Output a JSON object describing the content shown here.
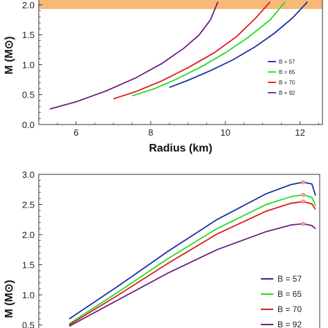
{
  "chart_data": [
    {
      "type": "line",
      "title": "",
      "xlabel": "Radius (km)",
      "ylabel": "M (M⊙)",
      "xlim": [
        5,
        12.6
      ],
      "ylim": [
        0,
        2.08
      ],
      "xticks": [
        "6",
        "8",
        "10",
        "12"
      ],
      "yticks": [
        "0.0",
        "0.5",
        "1.0",
        "1.5",
        "2.0"
      ],
      "band": {
        "y_from": 1.93,
        "y_to": 2.08,
        "color": "#f8b878"
      },
      "legend": {
        "position": "right"
      },
      "series": [
        {
          "name": "B = 57",
          "color": "#1a2ea0",
          "x": [
            8.5,
            9.0,
            9.6,
            10.2,
            10.8,
            11.3,
            11.8,
            12.2
          ],
          "y": [
            0.62,
            0.74,
            0.9,
            1.08,
            1.3,
            1.52,
            1.78,
            2.05
          ]
        },
        {
          "name": "B = 65",
          "color": "#22dd22",
          "x": [
            7.5,
            8.1,
            8.7,
            9.4,
            10.0,
            10.6,
            11.2,
            11.6
          ],
          "y": [
            0.48,
            0.6,
            0.76,
            0.98,
            1.2,
            1.45,
            1.75,
            2.05
          ]
        },
        {
          "name": "B = 70",
          "color": "#dd1a1a",
          "x": [
            7.0,
            7.6,
            8.3,
            9.0,
            9.7,
            10.3,
            10.8,
            11.2
          ],
          "y": [
            0.43,
            0.55,
            0.73,
            0.95,
            1.2,
            1.47,
            1.77,
            2.05
          ]
        },
        {
          "name": "B = 92",
          "color": "#6a1f82",
          "x": [
            5.3,
            6.0,
            6.8,
            7.6,
            8.3,
            8.9,
            9.3,
            9.6,
            9.8
          ],
          "y": [
            0.26,
            0.38,
            0.56,
            0.78,
            1.02,
            1.28,
            1.5,
            1.75,
            2.05
          ]
        }
      ]
    },
    {
      "type": "line",
      "title": "",
      "xlabel": "",
      "ylabel": "M (M⊙)",
      "ylim": [
        0.45,
        3.0
      ],
      "yticks": [
        "0.5",
        "1.0",
        "1.5",
        "2.0",
        "2.5",
        "3.0"
      ],
      "legend": {
        "position": "bottom-right"
      },
      "series": [
        {
          "name": "B = 57",
          "color": "#1a2ea0",
          "x": [
            0.0,
            0.2,
            0.4,
            0.6,
            0.8,
            0.9,
            0.95,
            0.985,
            1.0
          ],
          "y": [
            0.6,
            1.15,
            1.72,
            2.25,
            2.68,
            2.83,
            2.87,
            2.84,
            2.65
          ],
          "max": {
            "x": 0.95,
            "y": 2.87
          }
        },
        {
          "name": "B = 65",
          "color": "#22dd22",
          "x": [
            0.0,
            0.2,
            0.4,
            0.6,
            0.8,
            0.9,
            0.95,
            0.985,
            1.0
          ],
          "y": [
            0.52,
            1.05,
            1.6,
            2.1,
            2.5,
            2.63,
            2.66,
            2.62,
            2.48
          ],
          "max": {
            "x": 0.95,
            "y": 2.66
          }
        },
        {
          "name": "B = 70",
          "color": "#dd1a1a",
          "x": [
            0.0,
            0.2,
            0.4,
            0.6,
            0.8,
            0.9,
            0.95,
            0.985,
            1.0
          ],
          "y": [
            0.5,
            1.0,
            1.52,
            2.01,
            2.39,
            2.52,
            2.55,
            2.51,
            2.42
          ],
          "max": {
            "x": 0.95,
            "y": 2.55
          }
        },
        {
          "name": "B = 92",
          "color": "#6a1f82",
          "x": [
            0.0,
            0.2,
            0.4,
            0.6,
            0.8,
            0.9,
            0.95,
            0.985,
            1.0
          ],
          "y": [
            0.48,
            0.92,
            1.36,
            1.75,
            2.05,
            2.16,
            2.18,
            2.15,
            2.1
          ],
          "max": {
            "x": 0.95,
            "y": 2.18
          }
        }
      ]
    }
  ]
}
